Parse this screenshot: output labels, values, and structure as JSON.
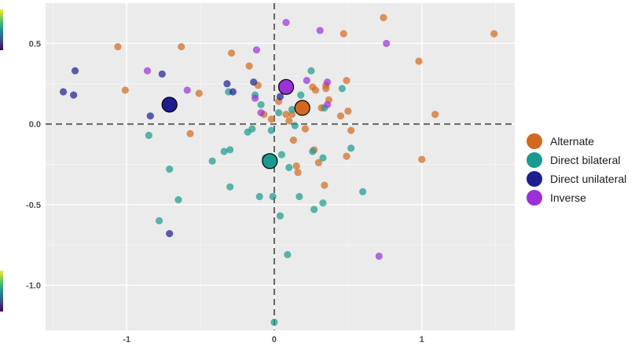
{
  "chart_data": {
    "type": "scatter",
    "title": "",
    "xlabel": "",
    "ylabel": "",
    "xlim": [
      -1.55,
      1.63
    ],
    "ylim": [
      -1.28,
      0.75
    ],
    "grid": true,
    "reference_lines": {
      "x": 0,
      "y": 0,
      "style": "dashed"
    },
    "x_ticks": [
      {
        "value": -1,
        "label": "-1"
      },
      {
        "value": 0,
        "label": "0"
      },
      {
        "value": 1,
        "label": "1"
      }
    ],
    "y_ticks": [
      {
        "value": 0.5,
        "label": "0.5"
      },
      {
        "value": 0,
        "label": "0.0"
      },
      {
        "value": -0.5,
        "label": "-0.5"
      },
      {
        "value": -1,
        "label": "-1.0"
      }
    ],
    "legend_position": "right",
    "series": [
      {
        "name": "Alternate",
        "color": "#d2691e",
        "centroid": [
          0.19,
          0.1
        ],
        "points": [
          [
            -1.06,
            0.48
          ],
          [
            -1.01,
            0.21
          ],
          [
            -0.63,
            0.48
          ],
          [
            -0.57,
            -0.06
          ],
          [
            -0.51,
            0.19
          ],
          [
            -0.29,
            0.44
          ],
          [
            -0.17,
            0.36
          ],
          [
            -0.11,
            0.24
          ],
          [
            -0.07,
            0.06
          ],
          [
            -0.02,
            0.03
          ],
          [
            0.03,
            0.14
          ],
          [
            0.08,
            0.06
          ],
          [
            0.12,
            0.06
          ],
          [
            0.13,
            -0.1
          ],
          [
            0.15,
            -0.26
          ],
          [
            0.16,
            -0.3
          ],
          [
            0.26,
            0.23
          ],
          [
            0.28,
            0.21
          ],
          [
            0.3,
            -0.24
          ],
          [
            0.32,
            0.1
          ],
          [
            0.34,
            -0.38
          ],
          [
            0.35,
            0.24
          ],
          [
            0.35,
            0.22
          ],
          [
            0.37,
            0.15
          ],
          [
            0.45,
            0.05
          ],
          [
            0.47,
            0.56
          ],
          [
            0.49,
            0.27
          ],
          [
            0.49,
            -0.2
          ],
          [
            0.5,
            0.08
          ],
          [
            0.52,
            -0.04
          ],
          [
            0.74,
            0.66
          ],
          [
            0.98,
            0.39
          ],
          [
            1.0,
            -0.22
          ],
          [
            1.09,
            0.06
          ],
          [
            1.49,
            0.56
          ],
          [
            0.21,
            -0.03
          ],
          [
            0.27,
            -0.16
          ],
          [
            0.1,
            0.02
          ]
        ]
      },
      {
        "name": "Direct bilateral",
        "color": "#1a9a8f",
        "centroid": [
          -0.03,
          -0.23
        ],
        "points": [
          [
            -0.85,
            -0.07
          ],
          [
            -0.78,
            -0.6
          ],
          [
            -0.71,
            -0.28
          ],
          [
            -0.65,
            -0.47
          ],
          [
            -0.42,
            -0.23
          ],
          [
            -0.34,
            -0.17
          ],
          [
            -0.3,
            -0.16
          ],
          [
            -0.3,
            -0.39
          ],
          [
            -0.31,
            0.2
          ],
          [
            -0.18,
            -0.05
          ],
          [
            -0.15,
            -0.03
          ],
          [
            -0.13,
            0.18
          ],
          [
            -0.1,
            -0.45
          ],
          [
            -0.09,
            0.12
          ],
          [
            -0.06,
            -0.21
          ],
          [
            -0.02,
            -0.04
          ],
          [
            -0.01,
            -0.45
          ],
          [
            0.0,
            -1.23
          ],
          [
            0.03,
            0.07
          ],
          [
            0.05,
            -0.19
          ],
          [
            0.09,
            -0.81
          ],
          [
            0.1,
            -0.27
          ],
          [
            0.12,
            0.09
          ],
          [
            0.14,
            -0.01
          ],
          [
            0.17,
            -0.45
          ],
          [
            0.18,
            0.18
          ],
          [
            0.25,
            0.33
          ],
          [
            0.26,
            -0.17
          ],
          [
            0.27,
            -0.53
          ],
          [
            0.33,
            -0.49
          ],
          [
            0.33,
            -0.21
          ],
          [
            0.34,
            0.1
          ],
          [
            0.46,
            0.22
          ],
          [
            0.52,
            -0.15
          ],
          [
            0.6,
            -0.42
          ],
          [
            0.04,
            -0.57
          ]
        ]
      },
      {
        "name": "Direct unilateral",
        "color": "#1c1e8f",
        "centroid": [
          -0.71,
          0.12
        ],
        "points": [
          [
            -1.43,
            0.2
          ],
          [
            -1.35,
            0.33
          ],
          [
            -1.36,
            0.18
          ],
          [
            -0.84,
            0.05
          ],
          [
            -0.76,
            0.31
          ],
          [
            -0.71,
            -0.68
          ],
          [
            -0.32,
            0.25
          ],
          [
            -0.28,
            0.2
          ],
          [
            -0.14,
            0.26
          ],
          [
            0.04,
            0.17
          ]
        ]
      },
      {
        "name": "Inverse",
        "color": "#9b30d9",
        "centroid": [
          0.08,
          0.23
        ],
        "points": [
          [
            0.08,
            0.63
          ],
          [
            0.31,
            0.58
          ],
          [
            0.76,
            0.5
          ],
          [
            -0.86,
            0.33
          ],
          [
            -0.59,
            0.21
          ],
          [
            -0.12,
            0.46
          ],
          [
            -0.13,
            0.16
          ],
          [
            -0.09,
            0.07
          ],
          [
            0.22,
            0.27
          ],
          [
            0.36,
            0.26
          ],
          [
            0.36,
            0.12
          ],
          [
            0.71,
            -0.82
          ]
        ]
      }
    ]
  }
}
